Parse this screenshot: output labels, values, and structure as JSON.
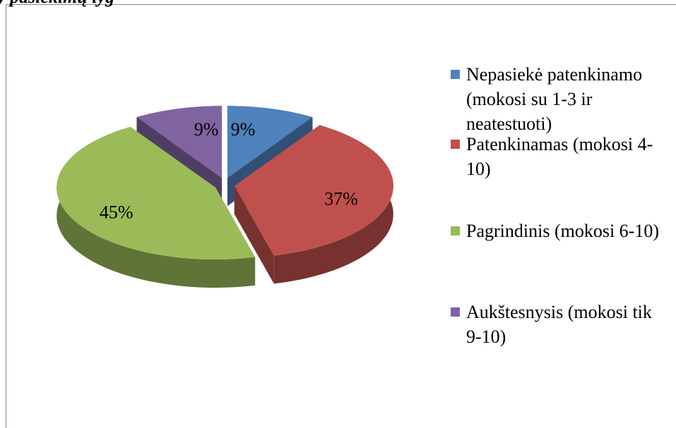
{
  "chart_data": {
    "type": "pie3d",
    "title": "y pasiekimų lyg",
    "categories": [
      "Nepasiekė patenkinamo (mokosi su 1-3 ir neatestuoti)",
      "Patenkinamas (mokosi 4-10)",
      "Pagrindinis (mokosi 6-10)",
      "Aukštesnysis (mokosi tik 9-10)"
    ],
    "values": [
      9,
      37,
      45,
      9
    ],
    "value_labels": [
      "9%",
      "37%",
      "45%",
      "9%"
    ],
    "colors": [
      "#4f81bd",
      "#c0504d",
      "#9bbb59",
      "#8064a2"
    ],
    "legend": "right"
  }
}
